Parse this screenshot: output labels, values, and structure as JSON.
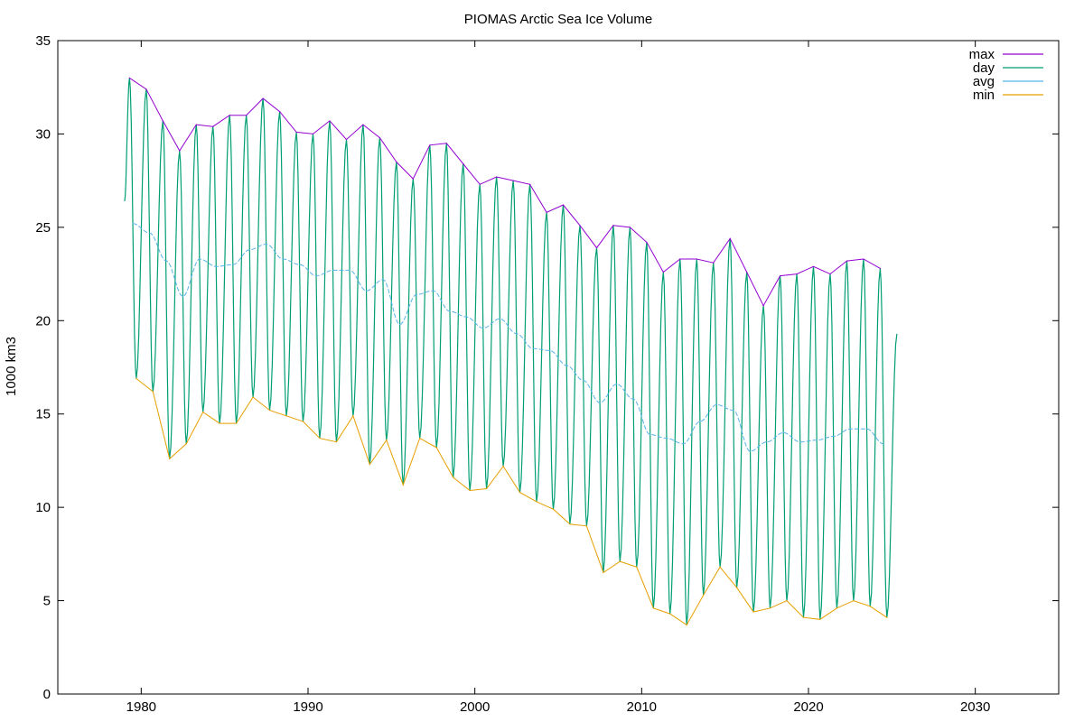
{
  "chart_data": {
    "type": "line",
    "title": "PIOMAS Arctic Sea Ice Volume",
    "xlabel": "",
    "ylabel": "1000 km3",
    "xlim": [
      1975,
      2035
    ],
    "ylim": [
      0,
      35
    ],
    "x_ticks": [
      1980,
      1990,
      2000,
      2010,
      2020,
      2030
    ],
    "y_ticks": [
      0,
      5,
      10,
      15,
      20,
      25,
      30,
      35
    ],
    "grid": false,
    "legend_position": "top-right",
    "colors": {
      "max": "#9400d3",
      "day": "#009e73",
      "avg": "#56b4e9",
      "min": "#e69f00"
    },
    "series": [
      {
        "name": "max",
        "x": [
          1979.3,
          1980.3,
          1981.3,
          1982.3,
          1983.3,
          1984.3,
          1985.3,
          1986.3,
          1987.3,
          1988.3,
          1989.3,
          1990.3,
          1991.3,
          1992.3,
          1993.3,
          1994.3,
          1995.3,
          1996.3,
          1997.3,
          1998.3,
          1999.3,
          2000.3,
          2001.3,
          2002.3,
          2003.3,
          2004.3,
          2005.3,
          2006.3,
          2007.3,
          2008.3,
          2009.3,
          2010.3,
          2011.3,
          2012.3,
          2013.3,
          2014.3,
          2015.3,
          2016.3,
          2017.3,
          2018.3,
          2019.3,
          2020.3,
          2021.3,
          2022.3,
          2023.3,
          2024.3
        ],
        "y": [
          33.0,
          32.4,
          30.7,
          29.1,
          30.5,
          30.4,
          31.0,
          31.0,
          31.9,
          31.2,
          30.1,
          30.0,
          30.7,
          29.7,
          30.5,
          29.8,
          28.5,
          27.6,
          29.4,
          29.5,
          28.4,
          27.3,
          27.7,
          27.5,
          27.3,
          25.8,
          26.2,
          25.1,
          23.9,
          25.1,
          25.0,
          24.2,
          22.6,
          23.3,
          23.3,
          23.1,
          24.4,
          22.6,
          20.8,
          22.4,
          22.5,
          22.9,
          22.5,
          23.2,
          23.3,
          22.8
        ]
      },
      {
        "name": "min",
        "x": [
          1979.7,
          1980.7,
          1981.7,
          1982.7,
          1983.7,
          1984.7,
          1985.7,
          1986.7,
          1987.7,
          1988.7,
          1989.7,
          1990.7,
          1991.7,
          1992.7,
          1993.7,
          1994.7,
          1995.7,
          1996.7,
          1997.7,
          1998.7,
          1999.7,
          2000.7,
          2001.7,
          2002.7,
          2003.7,
          2004.7,
          2005.7,
          2006.7,
          2007.7,
          2008.7,
          2009.7,
          2010.7,
          2011.7,
          2012.7,
          2013.7,
          2014.7,
          2015.7,
          2016.7,
          2017.7,
          2018.7,
          2019.7,
          2020.7,
          2021.7,
          2022.7,
          2023.7,
          2024.7
        ],
        "y": [
          16.9,
          16.2,
          12.6,
          13.4,
          15.1,
          14.5,
          14.5,
          15.9,
          15.2,
          14.9,
          14.6,
          13.7,
          13.5,
          14.9,
          12.3,
          13.6,
          11.2,
          13.7,
          13.2,
          11.6,
          10.9,
          11.0,
          12.2,
          10.8,
          10.3,
          9.9,
          9.1,
          9.0,
          6.5,
          7.1,
          6.8,
          4.6,
          4.3,
          3.7,
          5.3,
          6.8,
          5.7,
          4.4,
          4.6,
          5.0,
          4.1,
          4.0,
          4.6,
          5.0,
          4.7,
          4.1
        ]
      },
      {
        "name": "avg",
        "x": [
          1979.5,
          1980.5,
          1981.5,
          1982.5,
          1983.5,
          1984.5,
          1985.5,
          1986.5,
          1987.5,
          1988.5,
          1989.5,
          1990.5,
          1991.5,
          1992.5,
          1993.5,
          1994.5,
          1995.5,
          1996.5,
          1997.5,
          1998.5,
          1999.5,
          2000.5,
          2001.5,
          2002.5,
          2003.5,
          2004.5,
          2005.5,
          2006.5,
          2007.5,
          2008.5,
          2009.5,
          2010.5,
          2011.5,
          2012.5,
          2013.5,
          2014.5,
          2015.5,
          2016.5,
          2017.5,
          2018.5,
          2019.5,
          2020.5,
          2021.5,
          2022.5,
          2023.5,
          2024.5
        ],
        "y": [
          25.2,
          24.7,
          23.2,
          21.3,
          23.3,
          22.9,
          23.0,
          23.8,
          24.1,
          23.3,
          23.0,
          22.4,
          22.7,
          22.7,
          21.6,
          22.2,
          19.8,
          21.4,
          21.6,
          20.5,
          20.2,
          19.6,
          20.1,
          19.3,
          18.5,
          18.4,
          17.6,
          16.8,
          15.6,
          16.6,
          15.8,
          13.9,
          13.7,
          13.4,
          14.6,
          15.5,
          15.2,
          13.0,
          13.5,
          14.0,
          13.5,
          13.6,
          13.8,
          14.2,
          14.2,
          13.4
        ]
      },
      {
        "name": "day",
        "x_start": 1979.0,
        "x_end": 2025.3,
        "start_value": 26.4,
        "end_value": 19.3,
        "note_source": "daily series oscillates annually between the max and min series"
      }
    ]
  }
}
